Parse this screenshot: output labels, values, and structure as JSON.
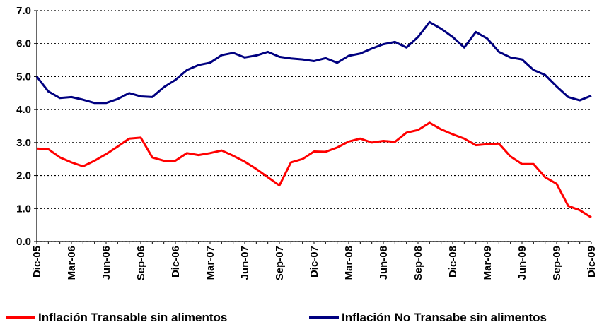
{
  "chart_data": {
    "type": "line",
    "categories": [
      "Dic-05",
      null,
      null,
      "Mar-06",
      null,
      null,
      "Jun-06",
      null,
      null,
      "Sep-06",
      null,
      null,
      "Dic-06",
      null,
      null,
      "Mar-07",
      null,
      null,
      "Jun-07",
      null,
      null,
      "Sep-07",
      null,
      null,
      "Dic-07",
      null,
      null,
      "Mar-08",
      null,
      null,
      "Jun-08",
      null,
      null,
      "Sep-08",
      null,
      null,
      "Dic-08",
      null,
      null,
      "Mar-09",
      null,
      null,
      "Jun-09",
      null,
      null,
      "Sep-09",
      null,
      null,
      "Dic-09"
    ],
    "series": [
      {
        "name": "Inflación Transable sin alimentos",
        "color": "#ff0000",
        "values": [
          2.82,
          2.8,
          2.55,
          2.4,
          2.28,
          2.45,
          2.65,
          2.88,
          3.12,
          3.15,
          2.55,
          2.45,
          2.45,
          2.68,
          2.62,
          2.68,
          2.76,
          2.6,
          2.42,
          2.2,
          1.95,
          1.7,
          2.4,
          2.5,
          2.73,
          2.72,
          2.85,
          3.03,
          3.12,
          3.0,
          3.05,
          3.02,
          3.3,
          3.38,
          3.6,
          3.4,
          3.25,
          3.12,
          2.92,
          2.95,
          2.97,
          2.58,
          2.35,
          2.35,
          1.95,
          1.75,
          1.08,
          0.95,
          0.73
        ]
      },
      {
        "name": "Inflación No Transabe sin alimentos",
        "color": "#000080",
        "values": [
          5.0,
          4.55,
          4.35,
          4.38,
          4.3,
          4.2,
          4.2,
          4.32,
          4.5,
          4.4,
          4.38,
          4.68,
          4.9,
          5.2,
          5.35,
          5.42,
          5.65,
          5.72,
          5.58,
          5.64,
          5.75,
          5.6,
          5.55,
          5.52,
          5.47,
          5.56,
          5.42,
          5.63,
          5.7,
          5.85,
          5.98,
          6.05,
          5.88,
          6.2,
          6.65,
          6.45,
          6.2,
          5.88,
          6.35,
          6.15,
          5.75,
          5.58,
          5.52,
          5.2,
          5.05,
          4.7,
          4.38,
          4.28,
          4.42
        ]
      }
    ],
    "ylim": [
      0,
      7
    ],
    "yticks": [
      {
        "value": 0,
        "label": "0.0"
      },
      {
        "value": 1,
        "label": "1.0"
      },
      {
        "value": 2,
        "label": "2.0"
      },
      {
        "value": 3,
        "label": "3.0"
      },
      {
        "value": 4,
        "label": "4.0"
      },
      {
        "value": 5,
        "label": "5.0"
      },
      {
        "value": 6,
        "label": "6.0"
      },
      {
        "value": 7,
        "label": "7.0"
      }
    ],
    "grid": true,
    "legend": "bottom"
  }
}
